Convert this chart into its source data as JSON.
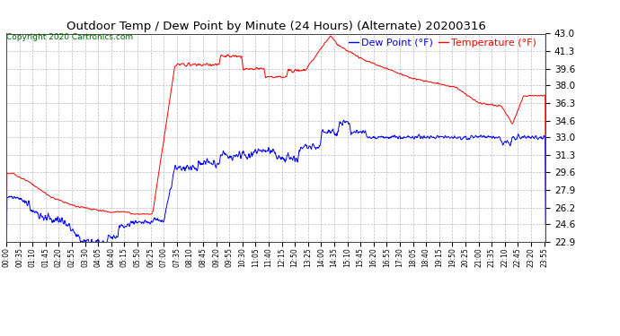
{
  "title": "Outdoor Temp / Dew Point by Minute (24 Hours) (Alternate) 20200316",
  "copyright": "Copyright 2020 Cartronics.com",
  "legend_dew": "Dew Point (°F)",
  "legend_temp": "Temperature (°F)",
  "ymin": 22.9,
  "ymax": 43.0,
  "yticks": [
    22.9,
    24.6,
    26.2,
    27.9,
    29.6,
    31.3,
    33.0,
    34.6,
    36.3,
    38.0,
    39.6,
    41.3,
    43.0
  ],
  "bg_color": "#ffffff",
  "grid_color": "#bbbbbb",
  "temp_color": "#ff0000",
  "dew_color": "#0000ff",
  "title_color": "#000000",
  "copyright_color": "#006400",
  "legend_dew_color": "#0000ff",
  "legend_temp_color": "#ff0000",
  "linewidth": 0.7,
  "n_points": 1440,
  "xtick_every": 35,
  "title_fontsize": 9.5,
  "copyright_fontsize": 6.5,
  "ytick_fontsize": 7.5,
  "xtick_fontsize": 5.5,
  "legend_fontsize": 8.0
}
